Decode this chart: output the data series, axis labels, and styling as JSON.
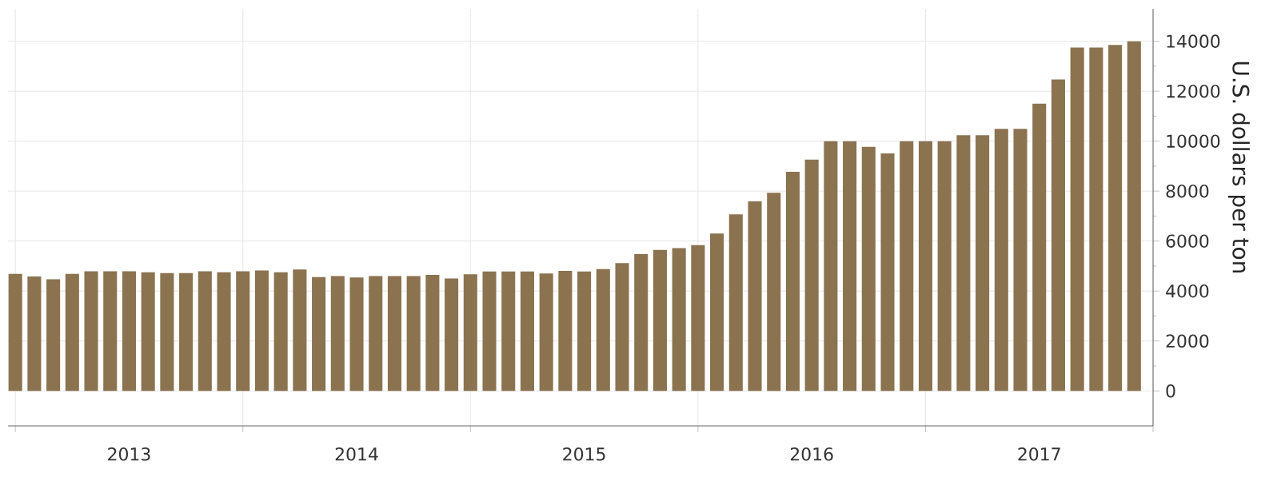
{
  "chart_data": {
    "type": "bar",
    "ylabel": "U.S. dollars per ton",
    "color": "#8b7350",
    "x": [
      "2013-01",
      "2013-02",
      "2013-03",
      "2013-04",
      "2013-05",
      "2013-06",
      "2013-07",
      "2013-08",
      "2013-09",
      "2013-10",
      "2013-11",
      "2013-12",
      "2014-01",
      "2014-02",
      "2014-03",
      "2014-04",
      "2014-05",
      "2014-06",
      "2014-07",
      "2014-08",
      "2014-09",
      "2014-10",
      "2014-11",
      "2014-12",
      "2015-01",
      "2015-02",
      "2015-03",
      "2015-04",
      "2015-05",
      "2015-06",
      "2015-07",
      "2015-08",
      "2015-09",
      "2015-10",
      "2015-11",
      "2015-12",
      "2016-01",
      "2016-02",
      "2016-03",
      "2016-04",
      "2016-05",
      "2016-06",
      "2016-07",
      "2016-08",
      "2016-09",
      "2016-10",
      "2016-11",
      "2016-12",
      "2017-01",
      "2017-02",
      "2017-03",
      "2017-04",
      "2017-05",
      "2017-06",
      "2017-07",
      "2017-08",
      "2017-09",
      "2017-10",
      "2017-11",
      "2017-12"
    ],
    "values": [
      4690,
      4580,
      4470,
      4690,
      4790,
      4790,
      4790,
      4750,
      4720,
      4720,
      4790,
      4750,
      4790,
      4820,
      4750,
      4860,
      4560,
      4600,
      4540,
      4600,
      4600,
      4600,
      4650,
      4500,
      4670,
      4780,
      4780,
      4780,
      4700,
      4810,
      4780,
      4880,
      5120,
      5480,
      5650,
      5720,
      5840,
      6300,
      7070,
      7590,
      7930,
      8770,
      9260,
      10000,
      10000,
      9770,
      9510,
      10000,
      10000,
      10000,
      10240,
      10240,
      10490,
      10490,
      11500,
      12470,
      13750,
      13750,
      13850,
      14000
    ],
    "xlim": [
      "2012-12-20",
      "2018-01"
    ],
    "xticks": [
      {
        "value": "2013-01",
        "label": null
      },
      {
        "value": "2014-01",
        "label": null
      },
      {
        "value": "2015-01",
        "label": null
      },
      {
        "value": "2016-01",
        "label": null
      },
      {
        "value": "2017-01",
        "label": null
      },
      {
        "value": "2018-01",
        "label": null
      },
      {
        "value": "2013-07",
        "label": "2013"
      },
      {
        "value": "2014-07",
        "label": "2014"
      },
      {
        "value": "2015-07",
        "label": "2015"
      },
      {
        "value": "2016-07",
        "label": "2016"
      },
      {
        "value": "2017-07",
        "label": "2017"
      }
    ],
    "ylim": [
      -1400,
      15300
    ],
    "yticks": [
      0,
      2000,
      4000,
      6000,
      8000,
      10000,
      12000,
      14000
    ],
    "grid": true
  }
}
